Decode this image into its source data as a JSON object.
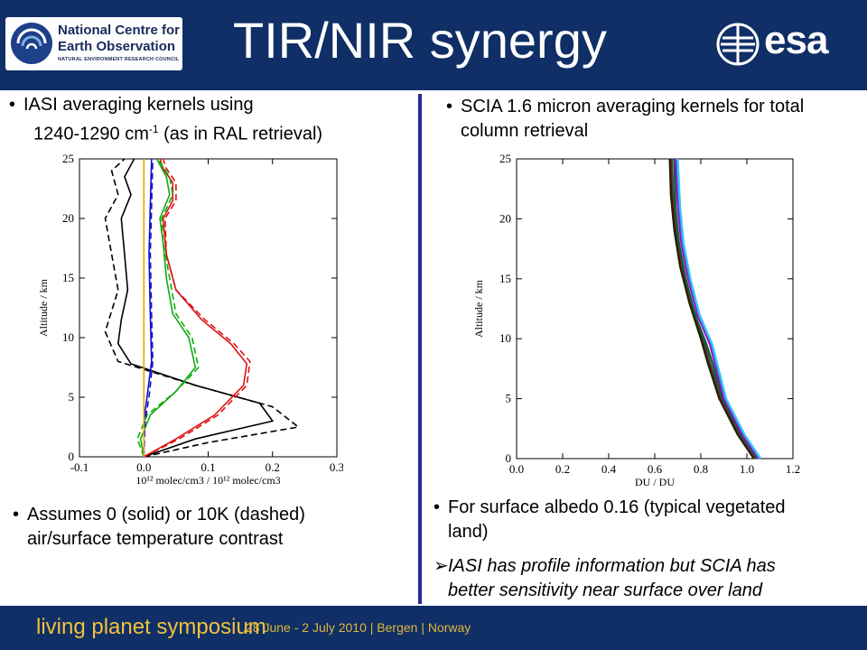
{
  "header": {
    "title": "TIR/NIR synergy",
    "logo_nceo": {
      "line1": "National Centre for",
      "line2": "Earth Observation",
      "line3": "NATURAL ENVIRONMENT RESEARCH COUNCIL"
    },
    "logo_esa": "esa",
    "bg_color": "#0f2f66"
  },
  "left": {
    "bullet1": {
      "line1": "IASI averaging kernels using",
      "line2_a": "1240-1290 cm",
      "line2_sup": "-1",
      "line2_b": " (as in RAL retrieval)"
    },
    "bullet2": {
      "line1": "Assumes 0 (solid) or 10K (dashed)",
      "line2": "air/surface temperature contrast"
    }
  },
  "right": {
    "bullet1": {
      "line1": "SCIA 1.6 micron averaging kernels for total",
      "line2": "column retrieval"
    },
    "bullet2": {
      "line1": "For surface albedo 0.16 (typical vegetated",
      "line2": "land)"
    },
    "bullet3": {
      "line1": "IASI has profile information but SCIA has",
      "line2": "better sensitivity near surface over land"
    }
  },
  "footer": {
    "symposium": "living planet symposium",
    "info": "28 June - 2 July 2010 | Bergen | Norway"
  },
  "chart_data": [
    {
      "type": "line",
      "xlabel": "10¹² molec/cm3 / 10¹² molec/cm3",
      "ylabel": "Altitude / km",
      "xlim": [
        -0.1,
        0.3
      ],
      "ylim": [
        0,
        25
      ],
      "x_ticks": [
        "-0.1",
        "0.0",
        "0.1",
        "0.2",
        "0.3"
      ],
      "y_ticks": [
        "0",
        "5",
        "10",
        "15",
        "20",
        "25"
      ],
      "series": [
        {
          "color": "#000000",
          "dash": false,
          "points": [
            [
              0.0,
              0
            ],
            [
              0.08,
              1.5
            ],
            [
              0.2,
              3
            ],
            [
              0.18,
              4.5
            ],
            [
              0.08,
              6
            ],
            [
              -0.02,
              7.8
            ],
            [
              -0.04,
              9.5
            ],
            [
              -0.035,
              11.5
            ],
            [
              -0.025,
              14
            ],
            [
              -0.03,
              17
            ],
            [
              -0.035,
              20
            ],
            [
              -0.02,
              22
            ],
            [
              -0.03,
              23.5
            ],
            [
              -0.015,
              25
            ]
          ]
        },
        {
          "color": "#000000",
          "dash": true,
          "points": [
            [
              0.0,
              0
            ],
            [
              0.1,
              1.2
            ],
            [
              0.24,
              2.5
            ],
            [
              0.2,
              4.2
            ],
            [
              0.08,
              6
            ],
            [
              -0.04,
              8
            ],
            [
              -0.06,
              10.5
            ],
            [
              -0.04,
              14
            ],
            [
              -0.05,
              17
            ],
            [
              -0.06,
              20
            ],
            [
              -0.04,
              22
            ],
            [
              -0.05,
              24
            ],
            [
              -0.03,
              25
            ]
          ]
        },
        {
          "color": "#dd1111",
          "dash": false,
          "points": [
            [
              0.0,
              0
            ],
            [
              0.05,
              1.5
            ],
            [
              0.11,
              3.5
            ],
            [
              0.155,
              6
            ],
            [
              0.16,
              7.8
            ],
            [
              0.135,
              9.5
            ],
            [
              0.09,
              11.5
            ],
            [
              0.05,
              14
            ],
            [
              0.035,
              17
            ],
            [
              0.03,
              20
            ],
            [
              0.045,
              21.5
            ],
            [
              0.045,
              23
            ],
            [
              0.03,
              24.2
            ],
            [
              0.025,
              25
            ]
          ]
        },
        {
          "color": "#dd1111",
          "dash": true,
          "points": [
            [
              0.0,
              0
            ],
            [
              0.055,
              1.5
            ],
            [
              0.115,
              3.5
            ],
            [
              0.16,
              6
            ],
            [
              0.165,
              8
            ],
            [
              0.14,
              9.5
            ],
            [
              0.095,
              11.5
            ],
            [
              0.05,
              14
            ],
            [
              0.035,
              17
            ],
            [
              0.033,
              20
            ],
            [
              0.05,
              21.5
            ],
            [
              0.05,
              23
            ],
            [
              0.035,
              24.2
            ],
            [
              0.03,
              25
            ]
          ]
        },
        {
          "color": "#11aa11",
          "dash": false,
          "points": [
            [
              0.0,
              0
            ],
            [
              -0.005,
              1.5
            ],
            [
              0.01,
              3.5
            ],
            [
              0.05,
              5.5
            ],
            [
              0.08,
              7.5
            ],
            [
              0.07,
              10
            ],
            [
              0.045,
              12
            ],
            [
              0.035,
              15
            ],
            [
              0.03,
              18
            ],
            [
              0.025,
              20
            ],
            [
              0.04,
              22
            ],
            [
              0.035,
              23.5
            ],
            [
              0.02,
              25
            ]
          ]
        },
        {
          "color": "#11aa11",
          "dash": true,
          "points": [
            [
              0.0,
              0
            ],
            [
              -0.01,
              1.5
            ],
            [
              0.005,
              3.5
            ],
            [
              0.05,
              5.5
            ],
            [
              0.085,
              7.5
            ],
            [
              0.075,
              10
            ],
            [
              0.05,
              12
            ],
            [
              0.04,
              15
            ],
            [
              0.03,
              18
            ],
            [
              0.028,
              20
            ],
            [
              0.045,
              22
            ],
            [
              0.04,
              23.5
            ],
            [
              0.022,
              25
            ]
          ]
        },
        {
          "color": "#1111cc",
          "dash": false,
          "points": [
            [
              0.0,
              0
            ],
            [
              0.0,
              3
            ],
            [
              0.005,
              5
            ],
            [
              0.012,
              8
            ],
            [
              0.01,
              12
            ],
            [
              0.008,
              17
            ],
            [
              0.01,
              21
            ],
            [
              0.012,
              25
            ]
          ]
        },
        {
          "color": "#1111cc",
          "dash": true,
          "points": [
            [
              0.0,
              0
            ],
            [
              0.002,
              3
            ],
            [
              0.008,
              5
            ],
            [
              0.014,
              8
            ],
            [
              0.012,
              12
            ],
            [
              0.01,
              17
            ],
            [
              0.012,
              21
            ],
            [
              0.014,
              25
            ]
          ]
        },
        {
          "color": "#f0a000",
          "dash": false,
          "points": [
            [
              0.0,
              0
            ],
            [
              0.0,
              25
            ]
          ]
        }
      ]
    },
    {
      "type": "line",
      "xlabel": "DU / DU",
      "ylabel": "Altitude / km",
      "xlim": [
        0.0,
        1.2
      ],
      "ylim": [
        0,
        25
      ],
      "x_ticks": [
        "0.0",
        "0.2",
        "0.4",
        "0.6",
        "0.8",
        "1.0",
        "1.2"
      ],
      "y_ticks": [
        "0",
        "5",
        "10",
        "15",
        "20",
        "25"
      ],
      "series": [
        {
          "color": "#003300",
          "points": [
            [
              1.03,
              0
            ],
            [
              0.96,
              2
            ],
            [
              0.88,
              5
            ],
            [
              0.83,
              8
            ],
            [
              0.8,
              10
            ],
            [
              0.75,
              13
            ],
            [
              0.71,
              16
            ],
            [
              0.685,
              19
            ],
            [
              0.67,
              22
            ],
            [
              0.665,
              25
            ]
          ]
        },
        {
          "color": "#660000",
          "points": [
            [
              1.035,
              0
            ],
            [
              0.965,
              2
            ],
            [
              0.885,
              5
            ],
            [
              0.835,
              8
            ],
            [
              0.805,
              10
            ],
            [
              0.755,
              13
            ],
            [
              0.715,
              16
            ],
            [
              0.69,
              19
            ],
            [
              0.675,
              22
            ],
            [
              0.67,
              25
            ]
          ]
        },
        {
          "color": "#444444",
          "points": [
            [
              1.04,
              0
            ],
            [
              0.97,
              2
            ],
            [
              0.89,
              5
            ],
            [
              0.84,
              8
            ],
            [
              0.81,
              10
            ],
            [
              0.76,
              13
            ],
            [
              0.72,
              16
            ],
            [
              0.695,
              19
            ],
            [
              0.68,
              22
            ],
            [
              0.675,
              25
            ]
          ]
        },
        {
          "color": "#006633",
          "points": [
            [
              1.045,
              0
            ],
            [
              0.975,
              2
            ],
            [
              0.895,
              5
            ],
            [
              0.85,
              8
            ],
            [
              0.825,
              9.5
            ],
            [
              0.775,
              12
            ],
            [
              0.735,
              15
            ],
            [
              0.705,
              18
            ],
            [
              0.69,
              21
            ],
            [
              0.685,
              25
            ]
          ]
        },
        {
          "color": "#aa00aa",
          "points": [
            [
              1.05,
              0
            ],
            [
              0.98,
              2
            ],
            [
              0.9,
              5
            ],
            [
              0.86,
              8
            ],
            [
              0.84,
              9.5
            ],
            [
              0.785,
              12
            ],
            [
              0.745,
              15
            ],
            [
              0.715,
              18
            ],
            [
              0.7,
              21
            ],
            [
              0.69,
              25
            ]
          ]
        },
        {
          "color": "#5555ff",
          "points": [
            [
              1.055,
              0
            ],
            [
              0.985,
              2
            ],
            [
              0.905,
              5
            ],
            [
              0.865,
              8
            ],
            [
              0.845,
              9.5
            ],
            [
              0.79,
              12
            ],
            [
              0.75,
              15
            ],
            [
              0.72,
              18
            ],
            [
              0.705,
              21
            ],
            [
              0.695,
              25
            ]
          ]
        },
        {
          "color": "#33ccee",
          "points": [
            [
              1.06,
              0
            ],
            [
              0.99,
              2
            ],
            [
              0.91,
              5
            ],
            [
              0.87,
              8
            ],
            [
              0.85,
              9.5
            ],
            [
              0.795,
              12
            ],
            [
              0.755,
              15
            ],
            [
              0.725,
              18
            ],
            [
              0.71,
              21
            ],
            [
              0.7,
              25
            ]
          ]
        }
      ]
    }
  ]
}
